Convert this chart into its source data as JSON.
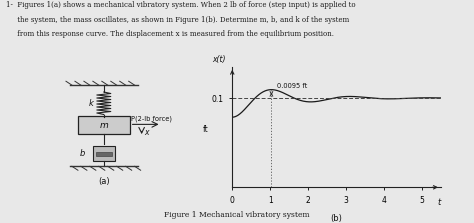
{
  "background_color": "#e8e8e8",
  "text_color": "#1a1a1a",
  "title_line1": "1-  Figures 1(a) shows a mechanical vibratory system. When 2 lb of force (step input) is applied to",
  "title_line2": "     the system, the mass oscillates, as shown in Figure 1(b). Determine m, b, and k of the system",
  "title_line3": "     from this response curve. The displacement x is measured from the equilibrium position.",
  "caption": "Figure 1 Mechanical vibratory system",
  "label_a": "(a)",
  "label_b": "(b)",
  "graph_x_ticks": [
    0,
    1,
    2,
    3,
    4,
    5
  ],
  "graph_ylim": [
    0,
    0.135
  ],
  "graph_xlim": [
    0,
    5.5
  ],
  "steady_state": 0.1,
  "peak_value": 0.1095,
  "annotation_text": "0.0095 ft",
  "p_force_label": "P(2-lb force)",
  "spring_label": "k",
  "mass_label": "m",
  "damper_label": "b",
  "disp_label": "x"
}
